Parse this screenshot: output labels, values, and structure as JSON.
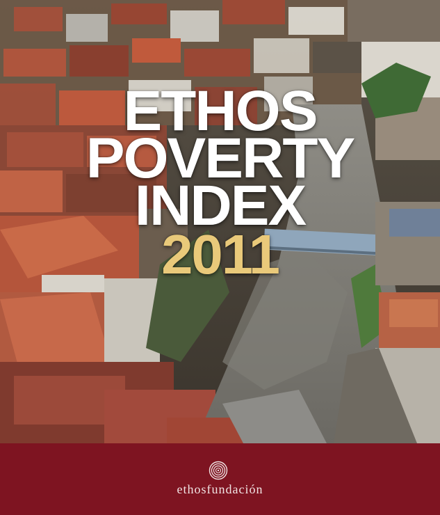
{
  "cover": {
    "title_lines": [
      "ETHOS",
      "POVERTY",
      "INDEX"
    ],
    "year": "2011",
    "brand": "ethosfundación"
  },
  "colors": {
    "title": "#ffffff",
    "year": "#e9c97a",
    "footer_band": "#7e1421",
    "brand_text": "#f1e4e4"
  },
  "photo": {
    "subject": "aerial view of dense rooftops along a river"
  }
}
